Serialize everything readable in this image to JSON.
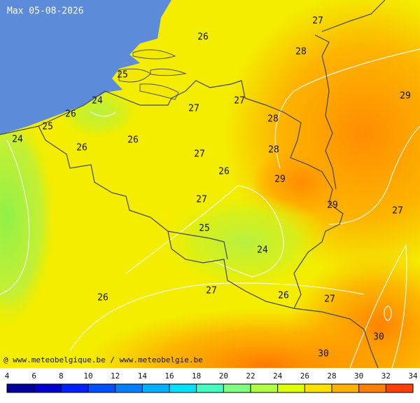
{
  "title": "Max 05-08-2026",
  "credit": "@ www.meteobelgique.be / www.meteobelgie.be",
  "labels": [
    27,
    26,
    28,
    25,
    29,
    24,
    27,
    27,
    26,
    28,
    25,
    24,
    26,
    26,
    28,
    27,
    26,
    29,
    27,
    29,
    27,
    25,
    24,
    27,
    26,
    26,
    27,
    30,
    30
  ],
  "legend": {
    "ticks": [
      4,
      6,
      8,
      10,
      12,
      14,
      16,
      18,
      20,
      22,
      24,
      26,
      28,
      30,
      32,
      34
    ],
    "colors": [
      "#0000a0",
      "#0000d0",
      "#0020ff",
      "#0050ff",
      "#0080ff",
      "#00b0ff",
      "#00e0ff",
      "#40ffc0",
      "#80ff80",
      "#b0ff40",
      "#e0ff00",
      "#ffe000",
      "#ffb000",
      "#ff8000",
      "#ff4000"
    ]
  }
}
